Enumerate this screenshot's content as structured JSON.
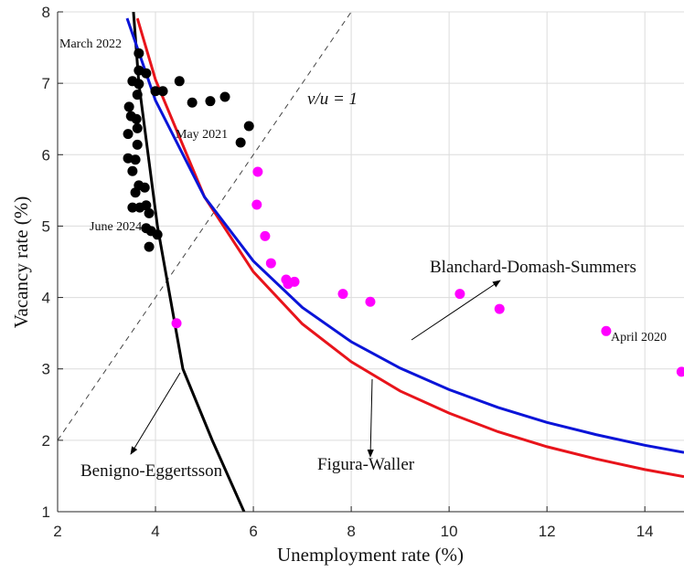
{
  "chart_data": {
    "type": "scatter",
    "x_label": "Unemployment rate (%)",
    "y_label": "Vacancy rate (%)",
    "xlim": [
      2,
      14.8
    ],
    "ylim": [
      1,
      8
    ],
    "xticks": [
      2,
      4,
      6,
      8,
      10,
      12,
      14
    ],
    "yticks": [
      1,
      2,
      3,
      4,
      5,
      6,
      7,
      8
    ],
    "grid": true,
    "series": [
      {
        "style": "dashed",
        "color": "#444444",
        "x": [
          2,
          8
        ],
        "values": [
          2,
          8
        ]
      },
      {
        "style": "line",
        "name": "Benigno-Eggertsson",
        "color": "#000000",
        "x": [
          3.55,
          3.66,
          3.85,
          4.04,
          4.3,
          4.56,
          5.16,
          5.81
        ],
        "values": [
          8,
          7,
          6,
          5,
          4,
          3,
          2,
          1
        ]
      },
      {
        "style": "line",
        "name": "Figura-Waller",
        "color": "#e8141b",
        "x": [
          3.63,
          4,
          5,
          6,
          7,
          8,
          9,
          10,
          11,
          12,
          13,
          14,
          14.8
        ],
        "values": [
          7.91,
          7.05,
          5.41,
          4.36,
          3.63,
          3.1,
          2.69,
          2.38,
          2.12,
          1.91,
          1.74,
          1.59,
          1.49
        ]
      },
      {
        "style": "line",
        "name": "Blanchard-Domash-Summers",
        "color": "#0a14d8",
        "x": [
          3.42,
          4,
          5,
          6,
          7,
          8,
          9,
          10,
          11,
          12,
          13,
          14,
          14.8
        ],
        "values": [
          7.91,
          6.76,
          5.41,
          4.51,
          3.86,
          3.38,
          3.01,
          2.71,
          2.46,
          2.25,
          2.08,
          1.93,
          1.83
        ]
      },
      {
        "style": "points",
        "color": "#000000",
        "x": [
          3.66,
          3.66,
          3.81,
          3.53,
          3.66,
          4.0,
          4.15,
          4.49,
          4.75,
          5.12,
          5.42,
          5.91,
          5.74,
          3.63,
          3.46,
          3.5,
          3.61,
          3.63,
          3.44,
          3.63,
          3.44,
          3.59,
          3.53,
          3.66,
          3.78,
          3.59,
          3.53,
          3.68,
          3.81,
          3.87,
          3.81,
          3.91,
          4.04,
          3.87
        ],
        "values": [
          7.42,
          7.18,
          7.14,
          7.03,
          6.99,
          6.89,
          6.89,
          7.03,
          6.73,
          6.75,
          6.81,
          6.4,
          6.17,
          6.84,
          6.67,
          6.54,
          6.5,
          6.37,
          6.29,
          6.14,
          5.95,
          5.93,
          5.77,
          5.57,
          5.54,
          5.47,
          5.26,
          5.26,
          5.29,
          5.18,
          4.97,
          4.93,
          4.88,
          4.71
        ]
      },
      {
        "style": "points",
        "color": "#ff00ff",
        "x": [
          6.09,
          6.07,
          6.24,
          6.36,
          6.67,
          6.71,
          6.84,
          7.83,
          8.39,
          10.22,
          11.03,
          13.21,
          14.75,
          4.43
        ],
        "values": [
          5.76,
          5.3,
          4.86,
          4.48,
          4.25,
          4.19,
          4.22,
          4.05,
          3.94,
          4.05,
          3.84,
          3.53,
          2.96,
          3.64
        ]
      }
    ],
    "annotations": [
      "March 2022",
      "May 2021",
      "June 2024",
      "April 2020",
      "v/u = 1"
    ]
  }
}
